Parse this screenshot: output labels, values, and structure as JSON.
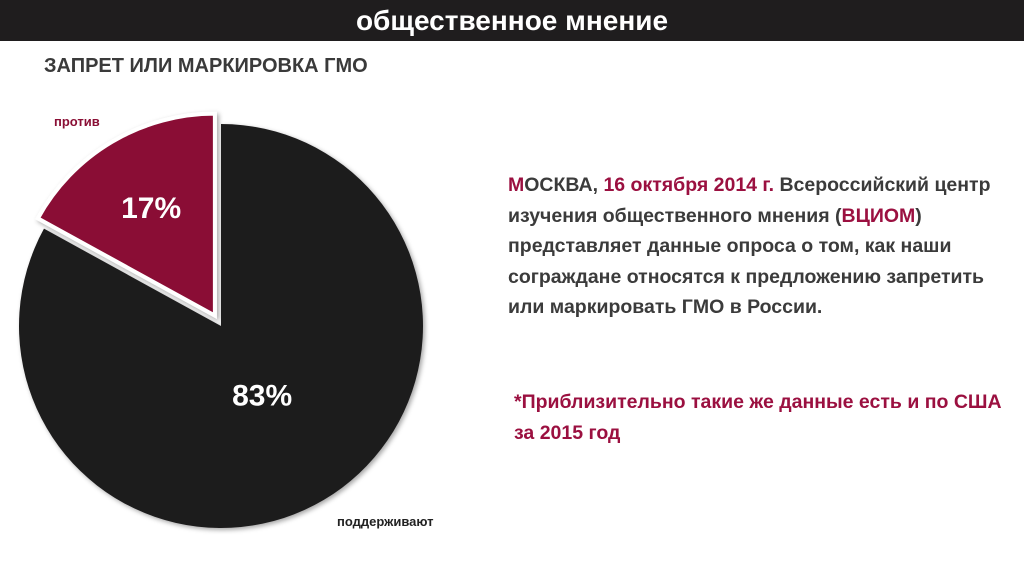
{
  "header": {
    "title": "общественное мнение"
  },
  "chart_data": {
    "type": "pie",
    "title": "ЗАПРЕТ ИЛИ МАРКИРОВКА ГМО",
    "slices": [
      {
        "name": "против",
        "value": 17,
        "label": "17%",
        "color": "#8a0f35",
        "exploded": true
      },
      {
        "name": "поддерживают",
        "value": 83,
        "label": "83%",
        "color": "#1f1d1e",
        "exploded": false
      }
    ]
  },
  "text": {
    "city_first": "М",
    "city_rest": "ОСКВА, ",
    "date": "16 октября 2014 г.",
    "part1": " Всероссийский центр изучения общественного мнения (",
    "org": "ВЦИОМ",
    "part2": ") представляет данные опроса о том, как наши сограждане относятся к предложению запретить или маркировать ГМО в России.",
    "note": "*Приблизительно такие же данные есть и по США за 2015 год"
  }
}
